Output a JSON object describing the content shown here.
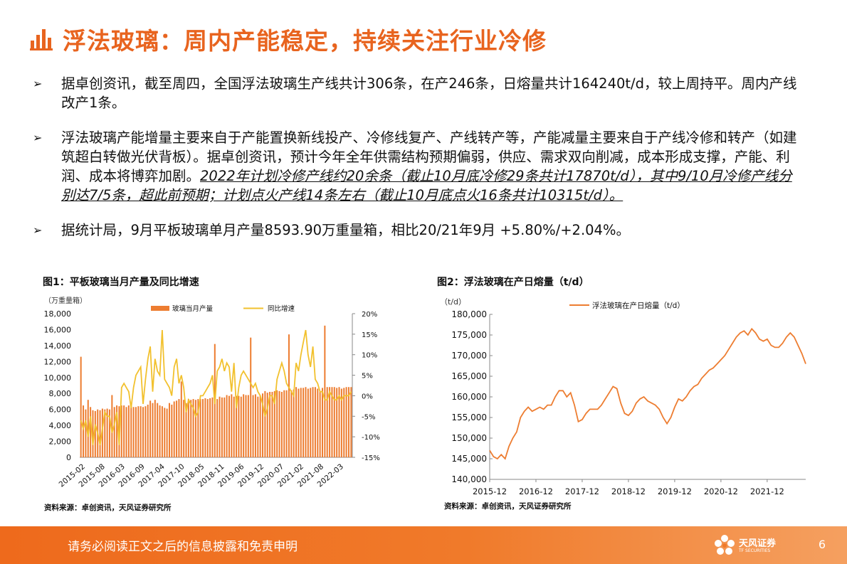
{
  "header": {
    "title": "浮法玻璃：周内产能稳定，持续关注行业冷修"
  },
  "bullets": [
    {
      "text": "据卓创资讯，截至周四，全国浮法玻璃生产线共计306条，在产246条，日熔量共计164240t/d，较上周持平。周内产线改产1条。"
    },
    {
      "text": "浮法玻璃产能增量主要来自于产能置换新线投产、冷修线复产、产线转产等，产能减量主要来自于产线冷修和转产（如建筑超白转做光伏背板）。据卓创资讯，预计今年全年供需结构预期偏弱，供应、需求双向削减，成本形成支撑，产能、利润、成本将博弈加剧。",
      "emph": "2022年计划冷修产线约20余条（截止10月底冷修29条共计17870t/d），其中9/10月冷修产线分别达7/5条，超此前预期；计划点火产线14条左右（截止10月底点火16条共计10315t/d）。"
    },
    {
      "text": "据统计局，9月平板玻璃单月产量8593.90万重量箱，相比20/21年9月 +5.80%/+2.04%。"
    }
  ],
  "figure1": {
    "title": "图1：平板玻璃当月产量及同比增速",
    "source": "资料来源：卓创资讯，天风证券研究所"
  },
  "figure2": {
    "title": "图2：浮法玻璃在产日熔量（t/d）",
    "source": "资料来源：卓创资讯，天风证券研究所"
  },
  "footer": {
    "disclaimer": "请务必阅读正文之后的信息披露和免责申明",
    "page": "6",
    "logo_name": "天风证券",
    "logo_en": "TF SECURITIES"
  },
  "colors": {
    "accent": "#e8641f",
    "bar": "#ed7d31",
    "yoy_line": "#f2c12e",
    "line2": "#ed7d31"
  },
  "chart_data": [
    {
      "type": "bar",
      "unit_label": "（万重量箱）",
      "ylim": [
        0,
        18000
      ],
      "y2lim": [
        -15,
        20
      ],
      "y_ticks": [
        "0",
        "2,000",
        "4,000",
        "6,000",
        "8,000",
        "10,000",
        "12,000",
        "14,000",
        "16,000",
        "18,000"
      ],
      "y2_ticks": [
        "-15%",
        "-10%",
        "-5%",
        "0%",
        "5%",
        "10%",
        "15%",
        "20%"
      ],
      "x_ticks": [
        "2015-02",
        "2015-08",
        "2016-03",
        "2016-09",
        "2017-04",
        "2017-10",
        "2018-05",
        "2018-11",
        "2019-06",
        "2019-12",
        "2020-07",
        "2021-02",
        "2021-08",
        "2022-03"
      ],
      "legend": [
        "玻璃当月产量",
        "同比增速"
      ],
      "series": [
        {
          "name": "玻璃当月产量",
          "kind": "bar",
          "axis": "left",
          "values": [
            12600,
            6500,
            6000,
            7200,
            6300,
            5900,
            5800,
            6000,
            5900,
            6100,
            6000,
            6100,
            6000,
            7800,
            6300,
            6500,
            6400,
            6500,
            6500,
            6300,
            6500,
            6400,
            6300,
            6300,
            6400,
            6400,
            6300,
            6400,
            6600,
            7100,
            6800,
            7200,
            6800,
            6500,
            6400,
            6200,
            6100,
            6800,
            6600,
            7000,
            7100,
            7300,
            9500,
            7200,
            6800,
            7300,
            7200,
            7300,
            7200,
            7300,
            7300,
            7300,
            7400,
            7300,
            7400,
            7500,
            14200,
            7300,
            7600,
            7500,
            7500,
            7800,
            7700,
            7900,
            7600,
            7700,
            7700,
            7600,
            7900,
            7800,
            7800,
            15000,
            7800,
            7900,
            7600,
            7700,
            8000,
            8300,
            8100,
            8200,
            8200,
            8300,
            8400,
            8300,
            8200,
            8400,
            8400,
            15400,
            8400,
            8500,
            8800,
            8600,
            8700,
            8700,
            8800,
            8600,
            8700,
            8800,
            8800,
            8600,
            8300,
            8700,
            16500,
            8800,
            8800,
            8800,
            8800,
            8700,
            8800,
            8600,
            8700,
            8800,
            8800,
            8800
          ]
        },
        {
          "name": "同比增速",
          "kind": "line",
          "axis": "right",
          "values": [
            -6,
            -8,
            -6,
            -10,
            -5,
            -12,
            -7,
            -9,
            -12,
            -8,
            -4,
            -5,
            -5,
            -9,
            -7,
            -4,
            -12,
            2,
            3,
            2,
            1,
            -3,
            2,
            5,
            6,
            7,
            -2,
            4,
            9,
            12,
            1,
            9,
            6,
            5,
            16,
            4,
            3,
            2,
            0,
            7,
            9,
            3,
            5,
            2,
            -4,
            -1,
            -2,
            -3,
            -5,
            -4,
            0,
            0,
            1,
            2,
            3,
            5,
            -2,
            6,
            7,
            9,
            6,
            8,
            7,
            1,
            8,
            -3,
            2,
            5,
            6,
            5,
            4,
            3,
            2,
            3,
            1,
            0,
            -2,
            -5,
            -3,
            0,
            0,
            -2,
            4,
            6,
            8,
            6,
            3,
            2,
            1,
            0,
            8,
            6,
            10,
            13,
            16,
            10,
            7,
            12,
            4,
            3,
            1,
            1,
            -1,
            -1,
            1,
            0,
            -1,
            -1,
            0,
            -1,
            0,
            0,
            0,
            1
          ]
        }
      ]
    },
    {
      "type": "line",
      "ylabel": "（t/d）",
      "ylim": [
        140000,
        180000
      ],
      "y_ticks": [
        "140,000",
        "145,000",
        "150,000",
        "155,000",
        "160,000",
        "165,000",
        "170,000",
        "175,000",
        "180,000"
      ],
      "x_ticks": [
        "2015-12",
        "2016-12",
        "2017-12",
        "2018-12",
        "2019-12",
        "2020-12",
        "2021-12"
      ],
      "x_range": [
        "2015-12",
        "2022-10"
      ],
      "legend": [
        "浮法玻璃在产日熔量（t/d）"
      ],
      "series": [
        {
          "name": "浮法玻璃在产日熔量（t/d）",
          "points": [
            [
              "2015-12",
              147000
            ],
            [
              "2016-01",
              145500
            ],
            [
              "2016-02",
              145000
            ],
            [
              "2016-03",
              146000
            ],
            [
              "2016-04",
              145000
            ],
            [
              "2016-05",
              148000
            ],
            [
              "2016-06",
              150000
            ],
            [
              "2016-07",
              151500
            ],
            [
              "2016-08",
              155000
            ],
            [
              "2016-09",
              156500
            ],
            [
              "2016-10",
              157500
            ],
            [
              "2016-11",
              156500
            ],
            [
              "2016-12",
              157000
            ],
            [
              "2017-01",
              157500
            ],
            [
              "2017-02",
              157000
            ],
            [
              "2017-03",
              158000
            ],
            [
              "2017-04",
              158000
            ],
            [
              "2017-05",
              160000
            ],
            [
              "2017-06",
              161500
            ],
            [
              "2017-07",
              161500
            ],
            [
              "2017-08",
              160000
            ],
            [
              "2017-09",
              161000
            ],
            [
              "2017-10",
              158000
            ],
            [
              "2017-11",
              154000
            ],
            [
              "2017-12",
              154500
            ],
            [
              "2018-01",
              156000
            ],
            [
              "2018-02",
              157000
            ],
            [
              "2018-03",
              157000
            ],
            [
              "2018-04",
              157000
            ],
            [
              "2018-05",
              158000
            ],
            [
              "2018-06",
              159500
            ],
            [
              "2018-07",
              161000
            ],
            [
              "2018-08",
              162500
            ],
            [
              "2018-09",
              162000
            ],
            [
              "2018-10",
              158500
            ],
            [
              "2018-11",
              156000
            ],
            [
              "2018-12",
              155500
            ],
            [
              "2019-01",
              156500
            ],
            [
              "2019-02",
              158500
            ],
            [
              "2019-03",
              159500
            ],
            [
              "2019-04",
              160000
            ],
            [
              "2019-05",
              159000
            ],
            [
              "2019-06",
              158500
            ],
            [
              "2019-07",
              158000
            ],
            [
              "2019-08",
              157000
            ],
            [
              "2019-09",
              155000
            ],
            [
              "2019-10",
              153500
            ],
            [
              "2019-11",
              155000
            ],
            [
              "2019-12",
              157500
            ],
            [
              "2020-01",
              159500
            ],
            [
              "2020-02",
              159000
            ],
            [
              "2020-03",
              160000
            ],
            [
              "2020-04",
              161500
            ],
            [
              "2020-05",
              162500
            ],
            [
              "2020-06",
              163000
            ],
            [
              "2020-07",
              164500
            ],
            [
              "2020-08",
              165500
            ],
            [
              "2020-09",
              166500
            ],
            [
              "2020-10",
              167000
            ],
            [
              "2020-11",
              168000
            ],
            [
              "2020-12",
              169000
            ],
            [
              "2021-01",
              170000
            ],
            [
              "2021-02",
              171500
            ],
            [
              "2021-03",
              173000
            ],
            [
              "2021-04",
              174500
            ],
            [
              "2021-05",
              175500
            ],
            [
              "2021-06",
              176000
            ],
            [
              "2021-07",
              175000
            ],
            [
              "2021-08",
              176500
            ],
            [
              "2021-09",
              175500
            ],
            [
              "2021-10",
              174000
            ],
            [
              "2021-11",
              173500
            ],
            [
              "2021-12",
              174000
            ],
            [
              "2022-01",
              172500
            ],
            [
              "2022-02",
              172000
            ],
            [
              "2022-03",
              172000
            ],
            [
              "2022-04",
              173000
            ],
            [
              "2022-05",
              174500
            ],
            [
              "2022-06",
              175500
            ],
            [
              "2022-07",
              174500
            ],
            [
              "2022-08",
              172500
            ],
            [
              "2022-09",
              170500
            ],
            [
              "2022-10",
              168000
            ]
          ]
        }
      ]
    }
  ]
}
